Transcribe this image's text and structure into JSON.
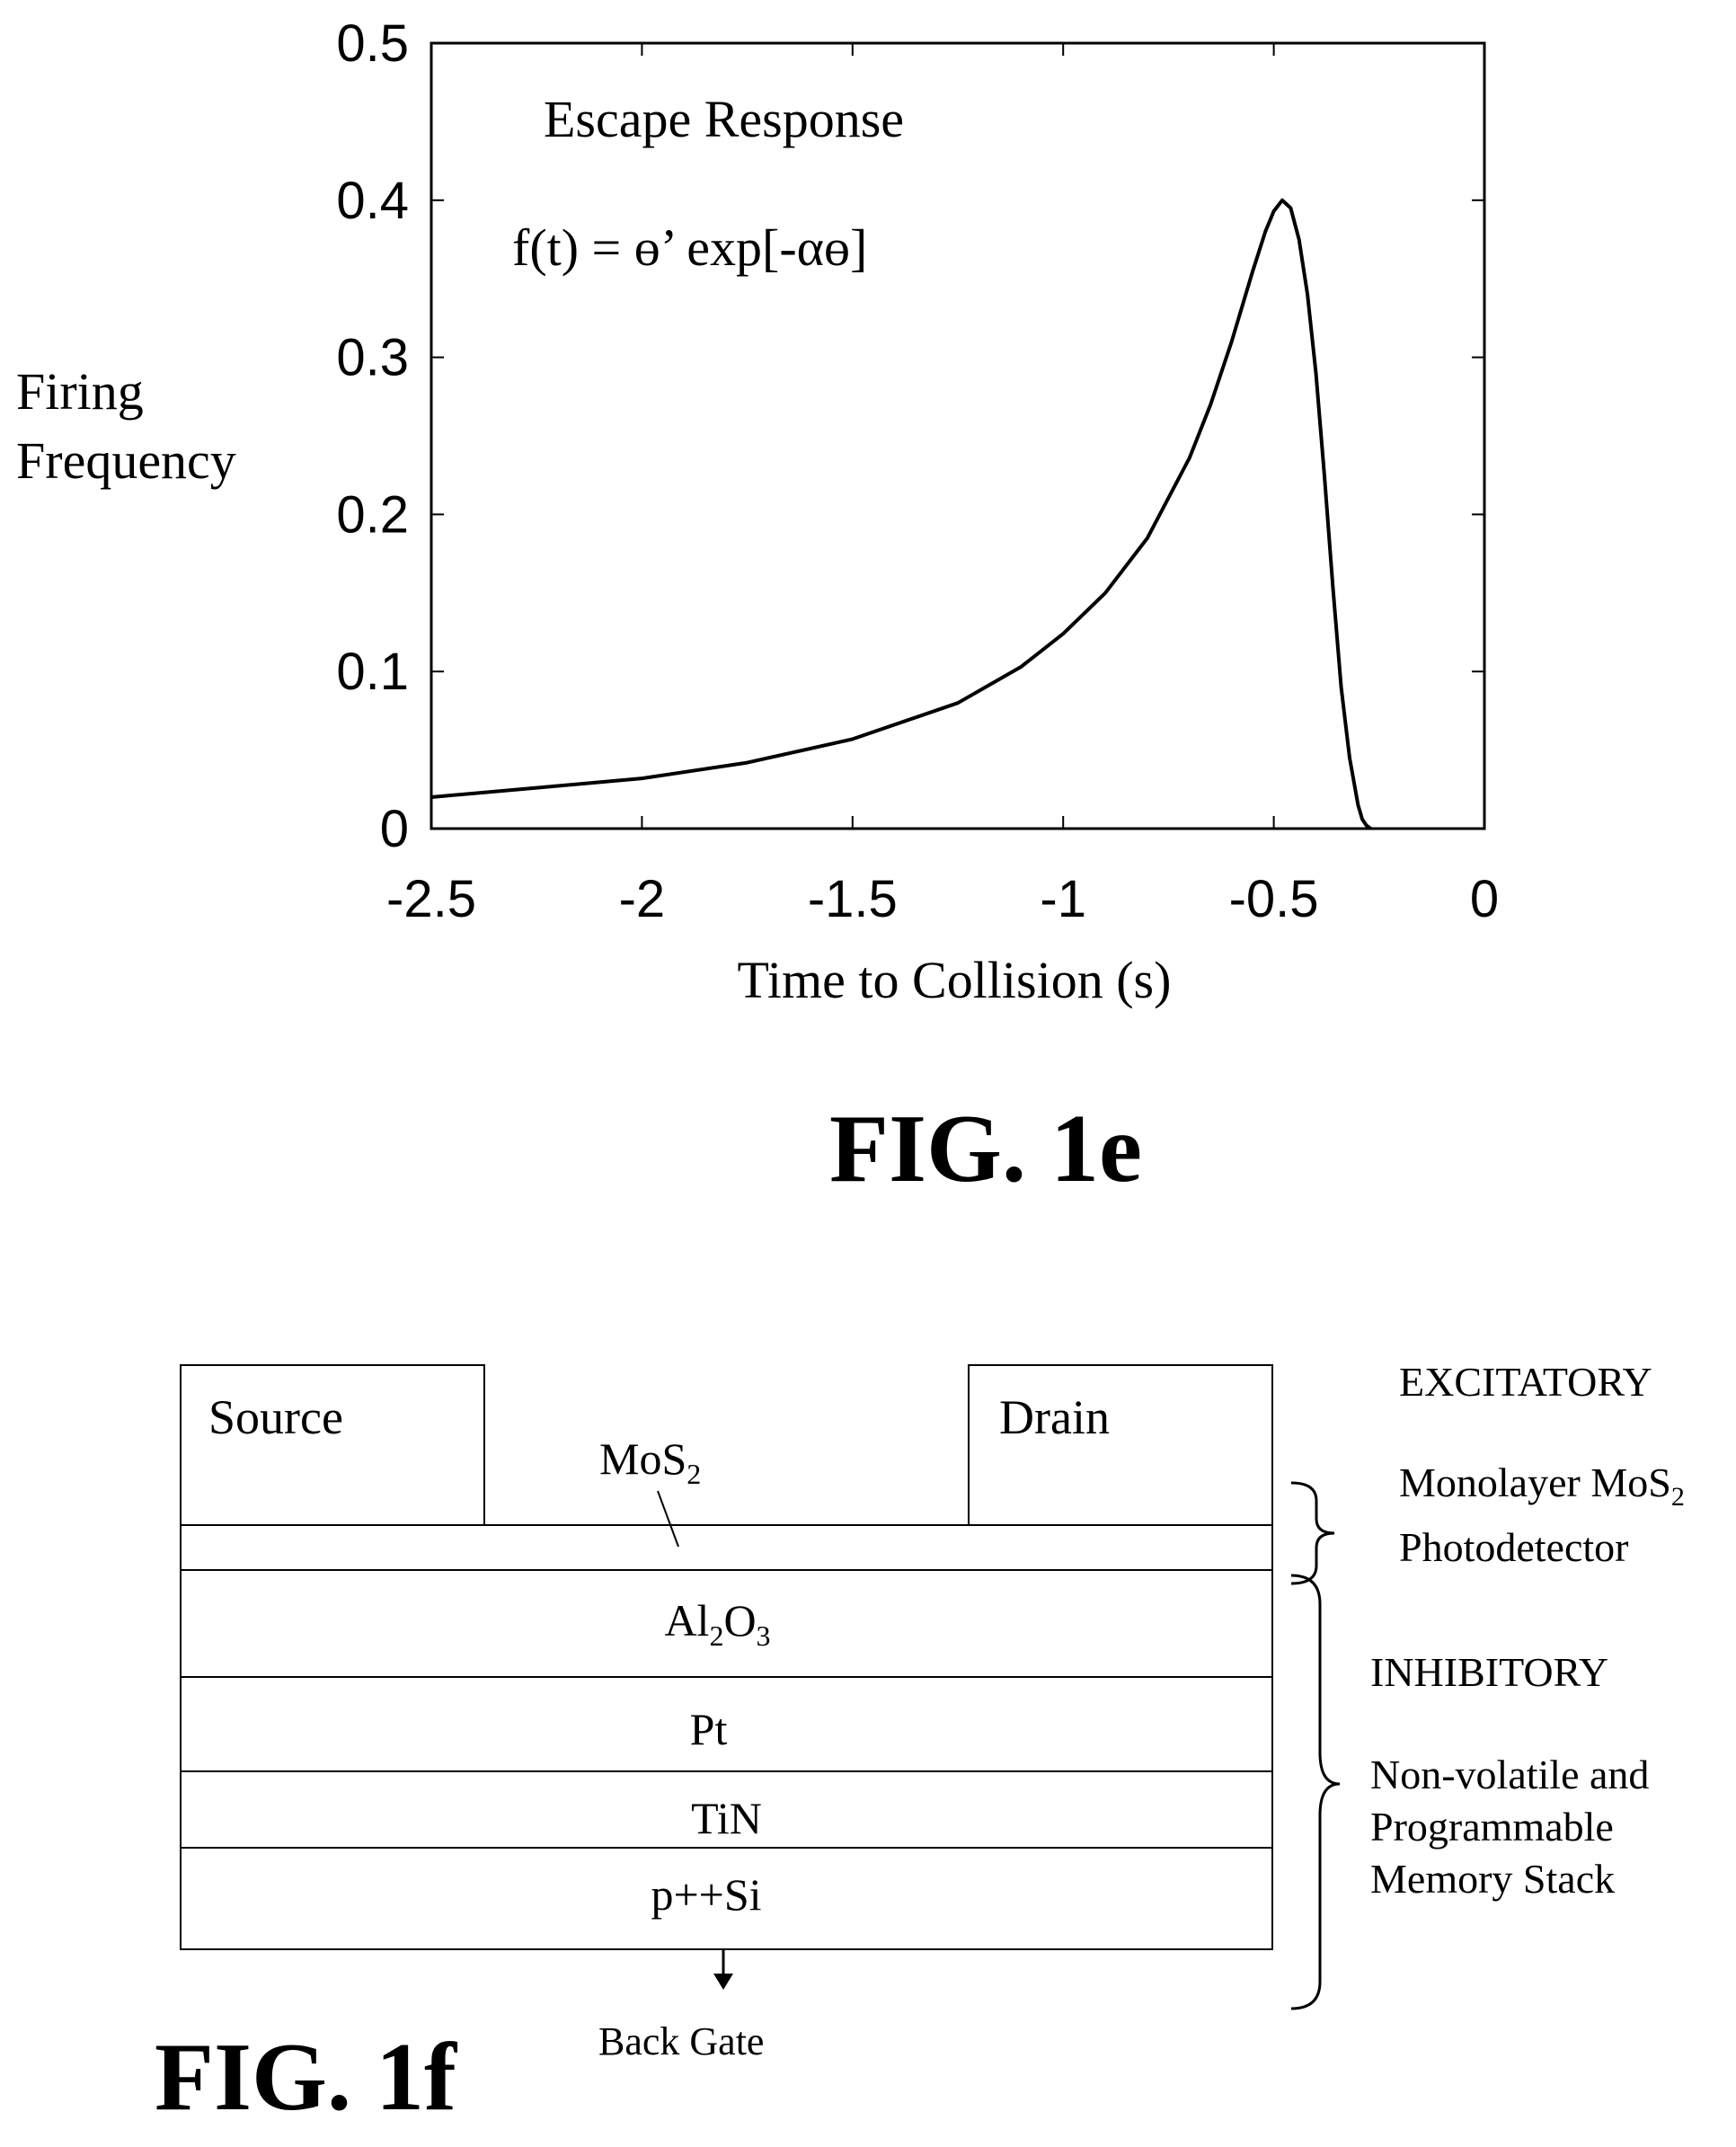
{
  "figures": {
    "fig_1e_caption": "FIG. 1e",
    "fig_1f_caption": "FIG. 1f"
  },
  "chart_data": {
    "type": "line",
    "annotation_title": "Escape Response",
    "annotation_formula": "f(t) = ɵ’ exp[-αɵ]",
    "xlabel": "Time to Collision (s)",
    "ylabel_line1": "Firing",
    "ylabel_line2": "Frequency",
    "xlim": [
      -2.5,
      0
    ],
    "ylim": [
      0,
      0.5
    ],
    "x_ticks": [
      "-2.5",
      "-2",
      "-1.5",
      "-1",
      "-0.5",
      "0"
    ],
    "y_ticks": [
      "0",
      "0.1",
      "0.2",
      "0.3",
      "0.4",
      "0.5"
    ],
    "grid": false,
    "series": [
      {
        "x": [
          -2.5,
          -2.25,
          -2.0,
          -1.75,
          -1.5,
          -1.25,
          -1.1,
          -1.0,
          -0.9,
          -0.8,
          -0.7,
          -0.65,
          -0.6,
          -0.55,
          -0.52,
          -0.5,
          -0.48,
          -0.46,
          -0.44,
          -0.42,
          -0.4,
          -0.38,
          -0.36,
          -0.34,
          -0.32,
          -0.3,
          -0.29,
          -0.28,
          -0.27
        ],
        "y": [
          0.02,
          0.026,
          0.032,
          0.042,
          0.057,
          0.08,
          0.103,
          0.124,
          0.15,
          0.185,
          0.236,
          0.27,
          0.31,
          0.355,
          0.38,
          0.393,
          0.4,
          0.395,
          0.375,
          0.34,
          0.29,
          0.225,
          0.155,
          0.09,
          0.045,
          0.015,
          0.006,
          0.002,
          0.0
        ]
      }
    ]
  },
  "diagram": {
    "source": "Source",
    "drain": "Drain",
    "mos2_label": "MoS",
    "mos2_sub": "2",
    "al2o3_a": "Al",
    "al2o3_sub1": "2",
    "al2o3_b": "O",
    "al2o3_sub2": "3",
    "pt": "Pt",
    "tin": "TiN",
    "psi": "p++Si",
    "back_gate": "Back Gate",
    "excitatory": "EXCITATORY",
    "monolayer_line1": "Monolayer MoS",
    "monolayer_sub": "2",
    "monolayer_line2": "Photodetector",
    "inhibitory": "INHIBITORY",
    "nonvolatile_line1": "Non-volatile and",
    "nonvolatile_line2": "Programmable",
    "nonvolatile_line3": "Memory Stack"
  }
}
